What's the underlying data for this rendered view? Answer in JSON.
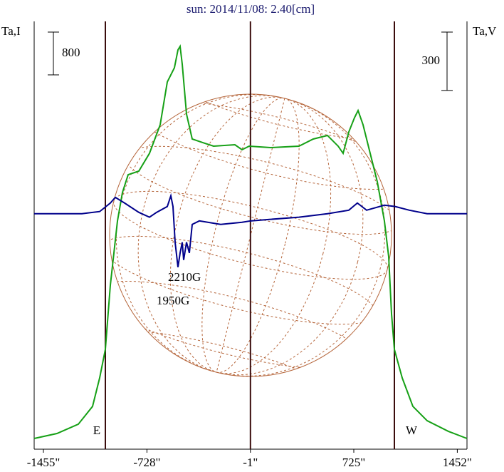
{
  "chart_data": {
    "type": "line",
    "title": "sun: 2014/11/08: 2.40[cm]",
    "y_label": "Ta,I",
    "y2_label": "Ta,V",
    "xlim": [
      -1520,
      1520
    ],
    "xticks": [
      {
        "value": -1455,
        "label": "-1455\""
      },
      {
        "value": -728,
        "label": "-728\""
      },
      {
        "value": -1,
        "label": "-1\""
      },
      {
        "value": 725,
        "label": "725\""
      },
      {
        "value": 1452,
        "label": "1452\""
      }
    ],
    "ylim": [
      0,
      8000
    ],
    "y2lim": [
      -1200,
      1000
    ],
    "center_x": -1,
    "limbs": [
      {
        "label": "E",
        "value": -1020
      },
      {
        "label": "W",
        "value": 1010
      }
    ],
    "scale_bars": [
      {
        "label": "800",
        "value": 800,
        "axis": "y"
      },
      {
        "label": "300",
        "value": 300,
        "axis": "y2"
      }
    ],
    "annotations": [
      "2210G",
      "1950G"
    ],
    "series": [
      {
        "color": "#16a016",
        "axis": "y",
        "x": [
          -1520,
          -1360,
          -1210,
          -1110,
          -1060,
          -1020,
          -985,
          -935,
          -900,
          -860,
          -785,
          -710,
          -635,
          -585,
          -535,
          -510,
          -495,
          -480,
          -450,
          -410,
          -335,
          -260,
          -110,
          -60,
          -10,
          140,
          340,
          440,
          540,
          615,
          650,
          690,
          730,
          755,
          790,
          840,
          890,
          940,
          970,
          990,
          1010,
          1065,
          1140,
          1240,
          1390,
          1520
        ],
        "values": [
          200,
          293,
          467,
          800,
          1333,
          1867,
          3067,
          4267,
          4800,
          5133,
          5200,
          5533,
          6067,
          6867,
          7133,
          7467,
          7533,
          7200,
          6267,
          5800,
          5733,
          5667,
          5693,
          5600,
          5667,
          5640,
          5667,
          5800,
          5867,
          5667,
          5533,
          5933,
          6200,
          6333,
          6067,
          5533,
          5000,
          4267,
          3600,
          2533,
          1867,
          1333,
          800,
          533,
          333,
          200
        ]
      },
      {
        "color": "#00008b",
        "axis": "y2",
        "x": [
          -1520,
          -1185,
          -1060,
          -985,
          -950,
          -885,
          -785,
          -710,
          -660,
          -585,
          -560,
          -545,
          -530,
          -510,
          -495,
          -480,
          -470,
          -450,
          -430,
          -410,
          -360,
          -210,
          -60,
          0,
          140,
          340,
          540,
          690,
          750,
          815,
          940,
          1015,
          1115,
          1240,
          1520
        ],
        "values": [
          11,
          11,
          22,
          66,
          95,
          66,
          18,
          -7,
          18,
          48,
          103,
          48,
          -136,
          -264,
          -191,
          -136,
          -227,
          -136,
          -191,
          -44,
          -26,
          -44,
          -33,
          -26,
          -18,
          -7,
          11,
          29,
          66,
          29,
          55,
          48,
          29,
          11,
          11
        ]
      }
    ]
  }
}
